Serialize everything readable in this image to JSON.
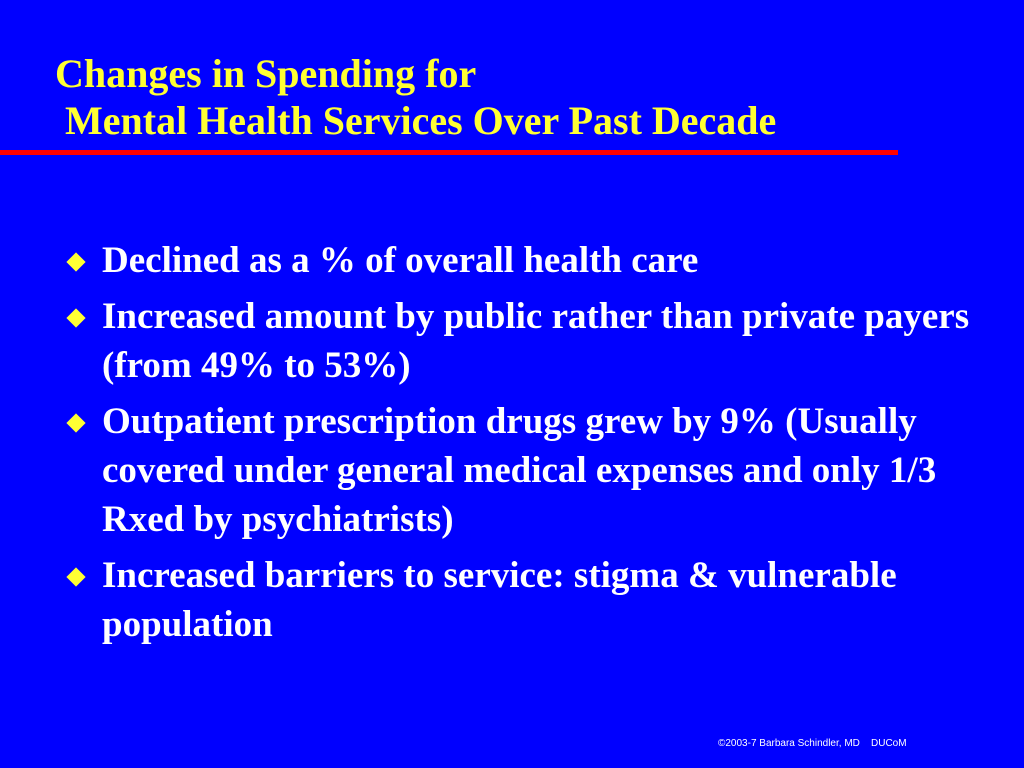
{
  "slide": {
    "title_line1": "Changes in Spending for",
    "title_line2": "Mental Health Services Over Past Decade",
    "bullets": [
      {
        "text": "Declined as a % of overall health care"
      },
      {
        "text": "Increased amount by public rather than private payers (from 49% to 53%)"
      },
      {
        "text": "Outpatient prescription drugs grew by 9% (Usually covered under general medical expenses and only 1/3 Rxed by psychiatrists)"
      },
      {
        "text": "Increased barriers to service: stigma & vulnerable population"
      }
    ],
    "footer": "©2003-7 Barbara Schindler, MD    DUCoM"
  },
  "colors": {
    "background": "#0000ff",
    "title": "#ffff33",
    "rule": "#ff0000",
    "body_text": "#ffffff",
    "bullet_marker": "#ffff33"
  },
  "icons": {
    "bullet_marker": "diamond-bullet-icon"
  }
}
